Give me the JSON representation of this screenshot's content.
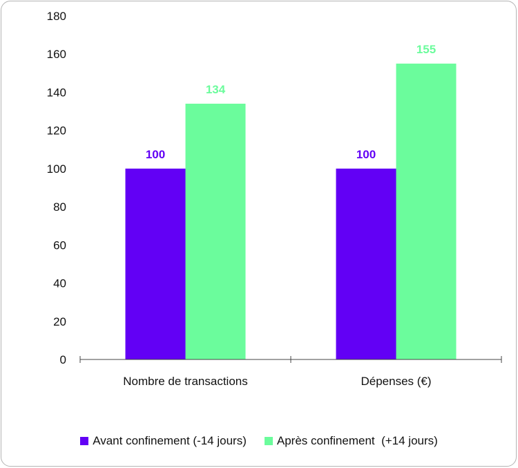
{
  "chart_data": {
    "type": "bar",
    "categories": [
      "Nombre de transactions",
      "Dépenses (€)"
    ],
    "series": [
      {
        "name": "Avant confinement (-14 jours)",
        "values": [
          100,
          100
        ],
        "color": "#6200f5"
      },
      {
        "name": "Après confinement  (+14 jours)",
        "values": [
          134,
          155
        ],
        "color": "#6bfc9c"
      }
    ],
    "ylim": [
      0,
      180
    ],
    "yticks": [
      0,
      20,
      40,
      60,
      80,
      100,
      120,
      140,
      160,
      180
    ],
    "grid": false,
    "legend": "bottom"
  }
}
